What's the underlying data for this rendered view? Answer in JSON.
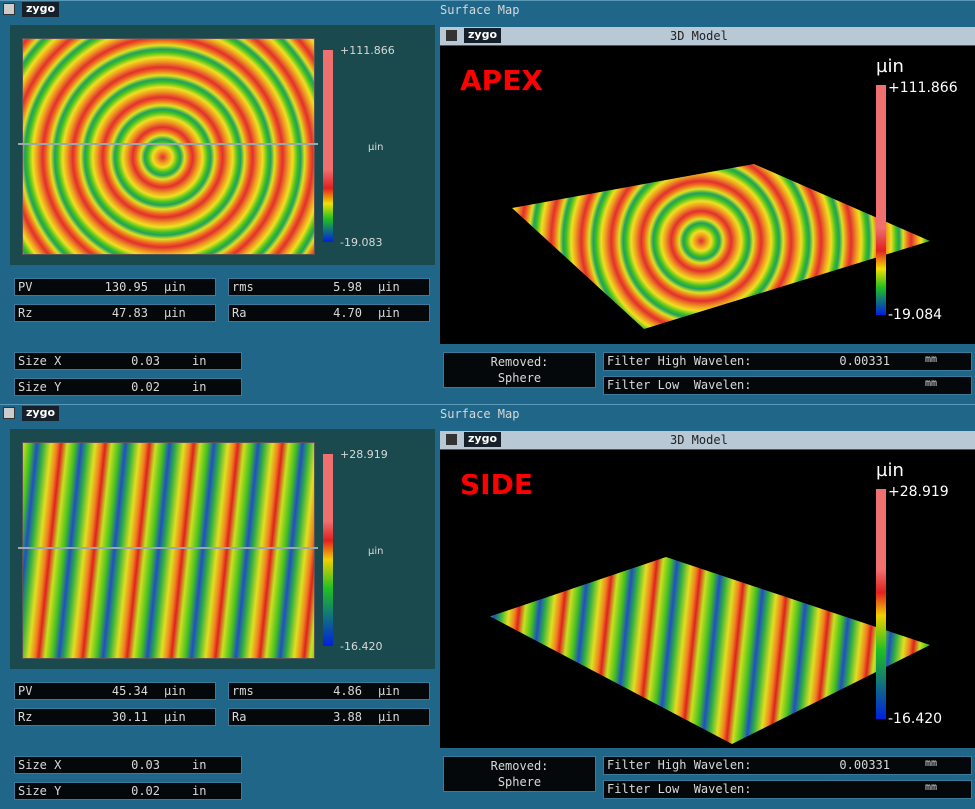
{
  "panels": [
    {
      "title": "Surface Map",
      "logo": "zygo",
      "map": {
        "scale_max": "+111.866",
        "scale_unit": "µin",
        "scale_min": "-19.083"
      },
      "stats": [
        {
          "label": "PV",
          "value": "130.95",
          "unit": "µin"
        },
        {
          "label": "rms",
          "value": "5.98",
          "unit": "µin"
        },
        {
          "label": "Rz",
          "value": "47.83",
          "unit": "µin"
        },
        {
          "label": "Ra",
          "value": "4.70",
          "unit": "µin"
        }
      ],
      "size": [
        {
          "label": "Size X",
          "value": "0.03",
          "unit": "in"
        },
        {
          "label": "Size Y",
          "value": "0.02",
          "unit": "in"
        }
      ],
      "model": {
        "logo": "zygo",
        "title": "3D Model",
        "label": "APEX",
        "scale_unit": "µin",
        "scale_max": "+111.866",
        "scale_min": "-19.084"
      },
      "removed": {
        "label": "Removed:",
        "value": "Sphere"
      },
      "filters": [
        {
          "label": "Filter High Wavelen:",
          "value": "0.00331",
          "unit": "mm"
        },
        {
          "label": "Filter Low  Wavelen:",
          "unit": "mm"
        }
      ]
    },
    {
      "title": "Surface Map",
      "logo": "zygo",
      "map": {
        "scale_max": "+28.919",
        "scale_unit": "µin",
        "scale_min": "-16.420"
      },
      "stats": [
        {
          "label": "PV",
          "value": "45.34",
          "unit": "µin"
        },
        {
          "label": "rms",
          "value": "4.86",
          "unit": "µin"
        },
        {
          "label": "Rz",
          "value": "30.11",
          "unit": "µin"
        },
        {
          "label": "Ra",
          "value": "3.88",
          "unit": "µin"
        }
      ],
      "size": [
        {
          "label": "Size X",
          "value": "0.03",
          "unit": "in"
        },
        {
          "label": "Size Y",
          "value": "0.02",
          "unit": "in"
        }
      ],
      "model": {
        "logo": "zygo",
        "title": "3D Model",
        "label": "SIDE",
        "scale_unit": "µin",
        "scale_max": "+28.919",
        "scale_min": "-16.420"
      },
      "removed": {
        "label": "Removed:",
        "value": "Sphere"
      },
      "filters": [
        {
          "label": "Filter High Wavelen:",
          "value": "0.00331",
          "unit": "mm"
        },
        {
          "label": "Filter Low  Wavelen:",
          "unit": "mm"
        }
      ]
    }
  ]
}
